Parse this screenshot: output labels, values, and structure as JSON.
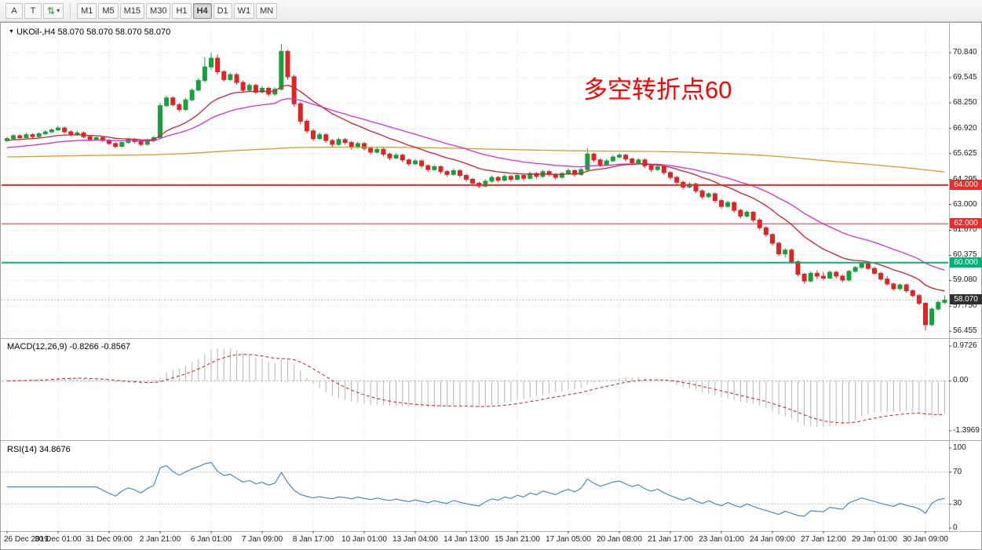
{
  "toolbar": {
    "tools": [
      {
        "label": "A"
      },
      {
        "label": "T"
      }
    ],
    "timeframes": [
      "M1",
      "M5",
      "M15",
      "M30",
      "H1",
      "H4",
      "D1",
      "W1",
      "MN"
    ],
    "active": "H4"
  },
  "icons": {
    "dropdown_triangle": "▼",
    "toolbar_arrows": "⇅",
    "toolbar_caret": "▾"
  },
  "colors": {
    "up": "#17a03c",
    "down": "#df2423",
    "grid": "#dcdcdc",
    "macd_hist": "#b4b4b4",
    "macd_signal": "#cf1a1a",
    "rsi_line": "#3d7fbe",
    "annotation": "#ff0000",
    "tag_current_bg": "#2f2f2f",
    "hline_red": "#ea2c2c",
    "hline_green": "#00b478"
  },
  "chart": {
    "title": "UKOil-,H4",
    "ohlc_text": "58.070 58.070 58.070 58.070",
    "annotation_text": "多空转折点60",
    "price_axis": [
      {
        "v": 70.84,
        "label": "70.840"
      },
      {
        "v": 69.545,
        "label": "69.545"
      },
      {
        "v": 68.25,
        "label": "68.250"
      },
      {
        "v": 66.92,
        "label": "66.920"
      },
      {
        "v": 65.625,
        "label": "65.625"
      },
      {
        "v": 64.295,
        "label": "64.295"
      },
      {
        "v": 63.0,
        "label": "63.000"
      },
      {
        "v": 61.67,
        "label": "61.670"
      },
      {
        "v": 60.375,
        "label": "60.375"
      },
      {
        "v": 59.08,
        "label": "59.080"
      },
      {
        "v": 57.75,
        "label": "57.750"
      },
      {
        "v": 56.455,
        "label": "56.455"
      }
    ],
    "hlines": [
      {
        "value": 64.0,
        "label": "64.000",
        "color": "#ea2c2c",
        "width": 2
      },
      {
        "value": 62.0,
        "label": "62.000",
        "color": "#ea2c2c",
        "width": 1
      },
      {
        "value": 60.0,
        "label": "60.000",
        "color": "#00b478",
        "width": 2
      }
    ],
    "current_price": {
      "value": 58.07,
      "label": "58.070"
    }
  },
  "macd_panel": {
    "label": "MACD(12,26,9) -0.8266 -0.8567"
  },
  "rsi_panel": {
    "label": "RSI(14) 34.8676"
  },
  "chart_data": {
    "type": "candlestick",
    "symbol": "UKOil-",
    "timeframe": "H4",
    "ylim": [
      56.1,
      72.3
    ],
    "x_labels": [
      {
        "bar": 0,
        "text": "26 Dec 2019"
      },
      {
        "bar": 8,
        "text": "30 Dec 01:00"
      },
      {
        "bar": 16,
        "text": "31 Dec 09:00"
      },
      {
        "bar": 24,
        "text": "2 Jan 21:00"
      },
      {
        "bar": 32,
        "text": "6 Jan 01:00"
      },
      {
        "bar": 40,
        "text": "7 Jan 09:00"
      },
      {
        "bar": 48,
        "text": "8 Jan 17:00"
      },
      {
        "bar": 56,
        "text": "10 Jan 01:00"
      },
      {
        "bar": 64,
        "text": "13 Jan 04:00"
      },
      {
        "bar": 72,
        "text": "14 Jan 13:00"
      },
      {
        "bar": 80,
        "text": "15 Jan 21:00"
      },
      {
        "bar": 88,
        "text": "17 Jan 05:00"
      },
      {
        "bar": 96,
        "text": "20 Jan 08:00"
      },
      {
        "bar": 104,
        "text": "21 Jan 17:00"
      },
      {
        "bar": 112,
        "text": "23 Jan 01:00"
      },
      {
        "bar": 120,
        "text": "24 Jan 09:00"
      },
      {
        "bar": 128,
        "text": "27 Jan 12:00"
      },
      {
        "bar": 136,
        "text": "29 Jan 01:00"
      },
      {
        "bar": 144,
        "text": "30 Jan 09:00"
      }
    ],
    "moving_averages": [
      {
        "name": "ma-slow-orange",
        "type": "ema",
        "alpha": 0.005,
        "init": 65.45,
        "color": "#d99b2b"
      },
      {
        "name": "ma-mid-magenta",
        "type": "ema",
        "alpha": 0.06,
        "init": 65.9,
        "color": "#d62fd6"
      },
      {
        "name": "ma-fast-red",
        "type": "ema",
        "alpha": 0.12,
        "init": 66.3,
        "color": "#d0202c"
      }
    ],
    "indicators": {
      "macd": {
        "params": [
          12,
          26,
          9
        ],
        "scale": [
          -1.66,
          1.15
        ],
        "axis": [
          {
            "v": 0.9726,
            "label": "0.9726"
          },
          {
            "v": 0,
            "label": "0.00"
          },
          {
            "v": -1.3969,
            "label": "-1.3969"
          }
        ]
      },
      "rsi": {
        "period": 14,
        "levels": [
          70,
          30
        ],
        "axis": [
          {
            "v": 100,
            "label": "100"
          },
          {
            "v": 70,
            "label": "70"
          },
          {
            "v": 30,
            "label": "30"
          },
          {
            "v": 0,
            "label": "0"
          }
        ]
      }
    },
    "ohlc": [
      [
        66.3,
        66.5,
        66.22,
        66.4
      ],
      [
        66.4,
        66.63,
        66.33,
        66.55
      ],
      [
        66.55,
        66.62,
        66.36,
        66.45
      ],
      [
        66.45,
        66.7,
        66.38,
        66.6
      ],
      [
        66.6,
        66.68,
        66.42,
        66.5
      ],
      [
        66.5,
        66.73,
        66.44,
        66.65
      ],
      [
        66.65,
        66.85,
        66.58,
        66.75
      ],
      [
        66.75,
        66.93,
        66.68,
        66.85
      ],
      [
        66.85,
        67.05,
        66.78,
        66.95
      ],
      [
        66.95,
        67.02,
        66.67,
        66.75
      ],
      [
        66.75,
        66.83,
        66.52,
        66.6
      ],
      [
        66.6,
        66.8,
        66.53,
        66.7
      ],
      [
        66.7,
        66.77,
        66.42,
        66.5
      ],
      [
        66.5,
        66.58,
        66.27,
        66.35
      ],
      [
        66.35,
        66.55,
        66.28,
        66.45
      ],
      [
        66.45,
        66.52,
        66.22,
        66.3
      ],
      [
        66.3,
        66.38,
        66.06,
        66.15
      ],
      [
        66.15,
        66.23,
        65.9,
        66.0
      ],
      [
        66.0,
        66.3,
        65.94,
        66.2
      ],
      [
        66.2,
        66.45,
        66.13,
        66.35
      ],
      [
        66.35,
        66.42,
        66.16,
        66.25
      ],
      [
        66.25,
        66.33,
        66.0,
        66.1
      ],
      [
        66.1,
        66.4,
        66.04,
        66.3
      ],
      [
        66.3,
        66.55,
        66.23,
        66.45
      ],
      [
        66.45,
        68.25,
        66.38,
        68.1
      ],
      [
        68.1,
        68.62,
        68.02,
        68.5
      ],
      [
        68.5,
        68.58,
        68.06,
        68.15
      ],
      [
        68.15,
        68.24,
        67.78,
        67.9
      ],
      [
        67.9,
        68.5,
        67.83,
        68.4
      ],
      [
        68.4,
        69.0,
        68.33,
        68.9
      ],
      [
        68.9,
        69.52,
        68.84,
        69.4
      ],
      [
        69.4,
        70.6,
        69.3,
        70.1
      ],
      [
        70.1,
        70.84,
        69.95,
        70.55
      ],
      [
        70.55,
        70.75,
        69.7,
        69.85
      ],
      [
        69.85,
        69.93,
        69.33,
        69.45
      ],
      [
        69.45,
        69.8,
        69.38,
        69.7
      ],
      [
        69.7,
        69.78,
        69.18,
        69.3
      ],
      [
        69.3,
        69.4,
        68.78,
        68.9
      ],
      [
        68.9,
        69.25,
        68.83,
        69.15
      ],
      [
        69.15,
        69.22,
        68.68,
        68.8
      ],
      [
        68.8,
        69.12,
        68.72,
        69.0
      ],
      [
        69.0,
        69.08,
        68.58,
        68.7
      ],
      [
        68.7,
        69.05,
        68.62,
        68.95
      ],
      [
        68.95,
        71.3,
        68.88,
        70.9
      ],
      [
        70.9,
        71.0,
        69.45,
        69.6
      ],
      [
        69.6,
        69.7,
        68.05,
        68.2
      ],
      [
        68.2,
        68.3,
        67.15,
        67.3
      ],
      [
        67.3,
        67.42,
        66.66,
        66.8
      ],
      [
        66.8,
        66.9,
        66.28,
        66.4
      ],
      [
        66.4,
        66.72,
        66.33,
        66.6
      ],
      [
        66.6,
        66.68,
        66.18,
        66.3
      ],
      [
        66.3,
        66.38,
        65.97,
        66.1
      ],
      [
        66.1,
        66.45,
        66.03,
        66.35
      ],
      [
        66.35,
        66.43,
        66.08,
        66.2
      ],
      [
        66.2,
        66.28,
        65.83,
        65.95
      ],
      [
        65.95,
        66.25,
        65.88,
        66.15
      ],
      [
        66.15,
        66.22,
        65.78,
        65.9
      ],
      [
        65.9,
        65.98,
        65.58,
        65.7
      ],
      [
        65.7,
        65.95,
        65.63,
        65.85
      ],
      [
        65.85,
        65.92,
        65.48,
        65.6
      ],
      [
        65.6,
        65.68,
        65.28,
        65.4
      ],
      [
        65.4,
        65.65,
        65.33,
        65.55
      ],
      [
        65.55,
        65.62,
        65.18,
        65.3
      ],
      [
        65.3,
        65.38,
        64.98,
        65.1
      ],
      [
        65.1,
        65.35,
        65.03,
        65.25
      ],
      [
        65.25,
        65.32,
        64.88,
        65.0
      ],
      [
        65.0,
        65.08,
        64.68,
        64.8
      ],
      [
        64.8,
        65.05,
        64.73,
        64.95
      ],
      [
        64.95,
        65.02,
        64.58,
        64.7
      ],
      [
        64.7,
        64.78,
        64.43,
        64.55
      ],
      [
        64.55,
        64.85,
        64.48,
        64.75
      ],
      [
        64.75,
        64.82,
        64.38,
        64.5
      ],
      [
        64.5,
        64.58,
        64.18,
        64.3
      ],
      [
        64.3,
        64.38,
        63.98,
        64.1
      ],
      [
        64.1,
        64.18,
        63.83,
        63.95
      ],
      [
        63.95,
        64.3,
        63.88,
        64.2
      ],
      [
        64.2,
        64.5,
        64.13,
        64.4
      ],
      [
        64.4,
        64.48,
        64.13,
        64.25
      ],
      [
        64.25,
        64.55,
        64.18,
        64.45
      ],
      [
        64.45,
        64.52,
        64.18,
        64.3
      ],
      [
        64.3,
        64.6,
        64.23,
        64.5
      ],
      [
        64.5,
        64.58,
        64.23,
        64.35
      ],
      [
        64.35,
        64.7,
        64.28,
        64.6
      ],
      [
        64.6,
        64.68,
        64.33,
        64.45
      ],
      [
        64.45,
        64.8,
        64.38,
        64.7
      ],
      [
        64.7,
        64.78,
        64.43,
        64.55
      ],
      [
        64.55,
        64.63,
        64.28,
        64.4
      ],
      [
        64.4,
        64.7,
        64.33,
        64.6
      ],
      [
        64.6,
        64.85,
        64.53,
        64.75
      ],
      [
        64.75,
        64.82,
        64.43,
        64.55
      ],
      [
        64.55,
        64.9,
        64.48,
        64.8
      ],
      [
        64.8,
        65.9,
        64.75,
        65.6
      ],
      [
        65.6,
        65.68,
        65.18,
        65.3
      ],
      [
        65.3,
        65.38,
        64.93,
        65.05
      ],
      [
        65.05,
        65.35,
        64.98,
        65.25
      ],
      [
        65.25,
        65.55,
        65.18,
        65.45
      ],
      [
        65.45,
        65.65,
        65.38,
        65.55
      ],
      [
        65.55,
        65.62,
        65.23,
        65.35
      ],
      [
        65.35,
        65.42,
        65.03,
        65.15
      ],
      [
        65.15,
        65.4,
        65.08,
        65.3
      ],
      [
        65.3,
        65.37,
        64.88,
        65.0
      ],
      [
        65.0,
        65.08,
        64.68,
        64.8
      ],
      [
        64.8,
        65.05,
        64.73,
        64.95
      ],
      [
        64.95,
        65.02,
        64.53,
        64.65
      ],
      [
        64.65,
        64.72,
        64.28,
        64.4
      ],
      [
        64.4,
        64.48,
        64.03,
        64.15
      ],
      [
        64.15,
        64.22,
        63.78,
        63.9
      ],
      [
        63.9,
        64.15,
        63.83,
        64.05
      ],
      [
        64.05,
        64.12,
        63.58,
        63.7
      ],
      [
        63.7,
        63.78,
        63.28,
        63.4
      ],
      [
        63.4,
        63.65,
        63.33,
        63.55
      ],
      [
        63.55,
        63.62,
        63.08,
        63.2
      ],
      [
        63.2,
        63.28,
        62.78,
        62.9
      ],
      [
        62.9,
        63.2,
        62.83,
        63.1
      ],
      [
        63.1,
        63.17,
        62.58,
        62.7
      ],
      [
        62.7,
        62.78,
        62.28,
        62.4
      ],
      [
        62.4,
        62.7,
        62.33,
        62.6
      ],
      [
        62.6,
        62.67,
        62.08,
        62.2
      ],
      [
        62.2,
        62.28,
        61.68,
        61.8
      ],
      [
        61.8,
        61.88,
        61.33,
        61.45
      ],
      [
        61.45,
        61.52,
        60.88,
        61.0
      ],
      [
        61.0,
        61.08,
        60.33,
        60.45
      ],
      [
        60.45,
        60.75,
        60.28,
        60.65
      ],
      [
        60.65,
        60.72,
        59.93,
        60.05
      ],
      [
        60.05,
        60.12,
        59.28,
        59.4
      ],
      [
        59.4,
        59.47,
        58.92,
        59.05
      ],
      [
        59.05,
        59.55,
        58.98,
        59.45
      ],
      [
        59.45,
        59.6,
        59.15,
        59.3
      ],
      [
        59.3,
        59.52,
        59.08,
        59.2
      ],
      [
        59.2,
        59.6,
        59.13,
        59.5
      ],
      [
        59.5,
        59.57,
        59.18,
        59.3
      ],
      [
        59.3,
        59.38,
        58.98,
        59.1
      ],
      [
        59.1,
        59.62,
        59.03,
        59.55
      ],
      [
        59.55,
        59.82,
        59.48,
        59.75
      ],
      [
        59.75,
        60.02,
        59.68,
        59.95
      ],
      [
        59.95,
        60.02,
        59.62,
        59.7
      ],
      [
        59.7,
        59.77,
        59.37,
        59.45
      ],
      [
        59.45,
        59.52,
        59.07,
        59.15
      ],
      [
        59.15,
        59.3,
        58.82,
        58.9
      ],
      [
        58.9,
        58.97,
        58.56,
        58.65
      ],
      [
        58.65,
        58.92,
        58.58,
        58.85
      ],
      [
        58.85,
        58.92,
        58.46,
        58.55
      ],
      [
        58.55,
        58.62,
        58.21,
        58.3
      ],
      [
        58.3,
        58.37,
        57.81,
        57.9
      ],
      [
        57.9,
        57.95,
        56.5,
        56.8
      ],
      [
        56.8,
        57.7,
        56.72,
        57.6
      ],
      [
        57.6,
        58.05,
        57.52,
        57.95
      ],
      [
        57.95,
        58.3,
        57.85,
        58.07
      ]
    ]
  }
}
